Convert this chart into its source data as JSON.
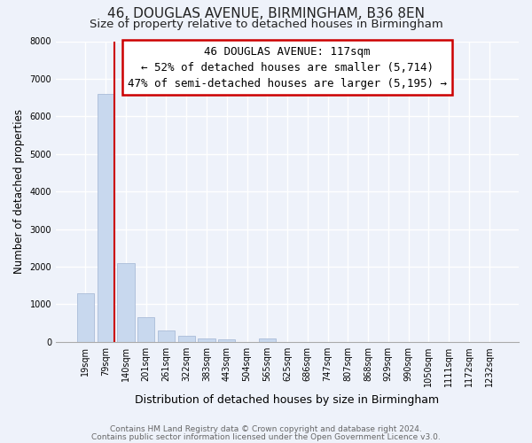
{
  "title": "46, DOUGLAS AVENUE, BIRMINGHAM, B36 8EN",
  "subtitle": "Size of property relative to detached houses in Birmingham",
  "xlabel": "Distribution of detached houses by size in Birmingham",
  "ylabel": "Number of detached properties",
  "bar_labels": [
    "19sqm",
    "79sqm",
    "140sqm",
    "201sqm",
    "261sqm",
    "322sqm",
    "383sqm",
    "443sqm",
    "504sqm",
    "565sqm",
    "625sqm",
    "686sqm",
    "747sqm",
    "807sqm",
    "868sqm",
    "929sqm",
    "990sqm",
    "1050sqm",
    "1111sqm",
    "1172sqm",
    "1232sqm"
  ],
  "bar_values": [
    1300,
    6600,
    2090,
    650,
    310,
    155,
    90,
    60,
    0,
    100,
    0,
    0,
    0,
    0,
    0,
    0,
    0,
    0,
    0,
    0,
    0
  ],
  "bar_color": "#c8d8ee",
  "bar_edge_color": "#aabcd8",
  "highlight_line_color": "#cc0000",
  "ylim": [
    0,
    8000
  ],
  "yticks": [
    0,
    1000,
    2000,
    3000,
    4000,
    5000,
    6000,
    7000,
    8000
  ],
  "annotation_title": "46 DOUGLAS AVENUE: 117sqm",
  "annotation_line1": "← 52% of detached houses are smaller (5,714)",
  "annotation_line2": "47% of semi-detached houses are larger (5,195) →",
  "annotation_box_color": "#ffffff",
  "annotation_box_edge": "#cc0000",
  "footer1": "Contains HM Land Registry data © Crown copyright and database right 2024.",
  "footer2": "Contains public sector information licensed under the Open Government Licence v3.0.",
  "bg_color": "#eef2fa",
  "grid_color": "#ffffff",
  "title_fontsize": 11,
  "subtitle_fontsize": 9.5,
  "tick_fontsize": 7,
  "ylabel_fontsize": 8.5,
  "xlabel_fontsize": 9,
  "footer_fontsize": 6.5,
  "annotation_fontsize": 9
}
